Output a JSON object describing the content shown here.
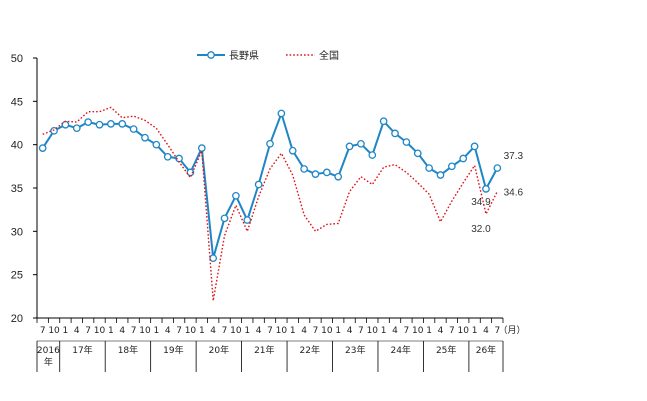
{
  "chart_data": {
    "type": "line",
    "title": "",
    "xlabel": "",
    "ylabel": "",
    "ylim": [
      20,
      50
    ],
    "yticks": [
      20,
      25,
      30,
      35,
      40,
      45,
      50
    ],
    "unit_label": "（月）",
    "months": [
      "7",
      "10",
      "1",
      "4",
      "7",
      "10",
      "1",
      "4",
      "7",
      "10",
      "1",
      "4",
      "7",
      "10",
      "1",
      "4",
      "7",
      "10",
      "1",
      "4",
      "7",
      "10",
      "1",
      "4",
      "7",
      "10",
      "1",
      "4",
      "7",
      "10",
      "1",
      "4",
      "7",
      "10",
      "1",
      "4",
      "7",
      "10",
      "1",
      "4",
      "7"
    ],
    "year_groups": [
      {
        "label": "2016\n年",
        "start": 0,
        "end": 1
      },
      {
        "label": "17年",
        "start": 2,
        "end": 5
      },
      {
        "label": "18年",
        "start": 6,
        "end": 9
      },
      {
        "label": "19年",
        "start": 10,
        "end": 13
      },
      {
        "label": "20年",
        "start": 14,
        "end": 17
      },
      {
        "label": "21年",
        "start": 18,
        "end": 21
      },
      {
        "label": "22年",
        "start": 22,
        "end": 25
      },
      {
        "label": "23年",
        "start": 26,
        "end": 29
      },
      {
        "label": "24年",
        "start": 30,
        "end": 33
      },
      {
        "label": "25年",
        "start": 34,
        "end": 37
      },
      {
        "label": "26年",
        "start": 38,
        "end": 40
      }
    ],
    "series": [
      {
        "name": "長野県",
        "color": "#1f86c6",
        "style": "solid-marker",
        "values": [
          39.6,
          41.6,
          42.3,
          41.9,
          42.6,
          42.3,
          42.4,
          42.4,
          41.8,
          40.8,
          40.0,
          38.6,
          38.4,
          36.8,
          39.6,
          26.9,
          31.5,
          34.1,
          31.3,
          35.4,
          40.1,
          43.6,
          39.3,
          37.2,
          36.6,
          36.8,
          36.3,
          39.8,
          40.1,
          38.8,
          42.7,
          41.3,
          40.3,
          39.0,
          37.3,
          36.5,
          37.5,
          38.4,
          39.8,
          34.9,
          37.3
        ]
      },
      {
        "name": "全国",
        "color": "#e0141a",
        "style": "dotted",
        "values": [
          41.2,
          41.7,
          42.7,
          42.6,
          43.8,
          43.8,
          44.3,
          43.1,
          43.3,
          42.8,
          41.9,
          40.0,
          38.0,
          36.2,
          39.3,
          22.0,
          29.5,
          33.0,
          30.0,
          34.0,
          37.2,
          39.0,
          36.5,
          31.9,
          30.0,
          30.8,
          30.9,
          34.6,
          36.3,
          35.4,
          37.4,
          37.7,
          36.8,
          35.6,
          34.3,
          31.1,
          33.5,
          35.6,
          37.6,
          32.0,
          34.6
        ]
      }
    ],
    "end_labels": [
      {
        "series": 0,
        "index": 40,
        "text": "37.3"
      },
      {
        "series": 1,
        "index": 40,
        "text": "34.6"
      },
      {
        "series": 0,
        "index": 39,
        "text": "34.9"
      },
      {
        "series": 1,
        "index": 39,
        "text": "32.0"
      }
    ]
  }
}
